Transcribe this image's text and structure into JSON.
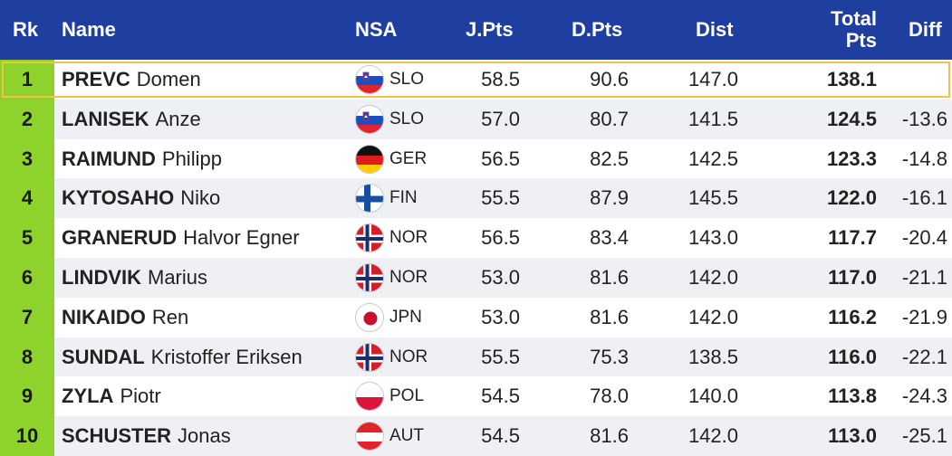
{
  "header": {
    "rk": "Rk",
    "name": "Name",
    "nsa": "NSA",
    "jpts": "J.Pts",
    "dpts": "D.Pts",
    "dist": "Dist",
    "total_line1": "Total",
    "total_line2": "Pts",
    "diff": "Diff"
  },
  "colors": {
    "header_bg": "#1f3fa0",
    "rank_bg": "#8ed22c",
    "highlight_border": "#f3c24a",
    "row_alt_bg": "#eff0f3"
  },
  "rows": [
    {
      "rk": "1",
      "last": "PREVC",
      "first": "Domen",
      "flag_icon": "slovenia-flag-icon",
      "nsa": "SLO",
      "jpts": "58.5",
      "dpts": "90.6",
      "dist": "147.0",
      "total": "138.1",
      "diff": ""
    },
    {
      "rk": "2",
      "last": "LANISEK",
      "first": "Anze",
      "flag_icon": "slovenia-flag-icon",
      "nsa": "SLO",
      "jpts": "57.0",
      "dpts": "80.7",
      "dist": "141.5",
      "total": "124.5",
      "diff": "-13.6"
    },
    {
      "rk": "3",
      "last": "RAIMUND",
      "first": "Philipp",
      "flag_icon": "germany-flag-icon",
      "nsa": "GER",
      "jpts": "56.5",
      "dpts": "82.5",
      "dist": "142.5",
      "total": "123.3",
      "diff": "-14.8"
    },
    {
      "rk": "4",
      "last": "KYTOSAHO",
      "first": "Niko",
      "flag_icon": "finland-flag-icon",
      "nsa": "FIN",
      "jpts": "55.5",
      "dpts": "87.9",
      "dist": "145.5",
      "total": "122.0",
      "diff": "-16.1"
    },
    {
      "rk": "5",
      "last": "GRANERUD",
      "first": "Halvor Egner",
      "flag_icon": "norway-flag-icon",
      "nsa": "NOR",
      "jpts": "56.5",
      "dpts": "83.4",
      "dist": "143.0",
      "total": "117.7",
      "diff": "-20.4"
    },
    {
      "rk": "6",
      "last": "LINDVIK",
      "first": "Marius",
      "flag_icon": "norway-flag-icon",
      "nsa": "NOR",
      "jpts": "53.0",
      "dpts": "81.6",
      "dist": "142.0",
      "total": "117.0",
      "diff": "-21.1"
    },
    {
      "rk": "7",
      "last": "NIKAIDO",
      "first": "Ren",
      "flag_icon": "japan-flag-icon",
      "nsa": "JPN",
      "jpts": "53.0",
      "dpts": "81.6",
      "dist": "142.0",
      "total": "116.2",
      "diff": "-21.9"
    },
    {
      "rk": "8",
      "last": "SUNDAL",
      "first": "Kristoffer Eriksen",
      "flag_icon": "norway-flag-icon",
      "nsa": "NOR",
      "jpts": "55.5",
      "dpts": "75.3",
      "dist": "138.5",
      "total": "116.0",
      "diff": "-22.1"
    },
    {
      "rk": "9",
      "last": "ZYLA",
      "first": "Piotr",
      "flag_icon": "poland-flag-icon",
      "nsa": "POL",
      "jpts": "54.5",
      "dpts": "78.0",
      "dist": "140.0",
      "total": "113.8",
      "diff": "-24.3"
    },
    {
      "rk": "10",
      "last": "SCHUSTER",
      "first": "Jonas",
      "flag_icon": "austria-flag-icon",
      "nsa": "AUT",
      "jpts": "54.5",
      "dpts": "81.6",
      "dist": "142.0",
      "total": "113.0",
      "diff": "-25.1"
    }
  ]
}
